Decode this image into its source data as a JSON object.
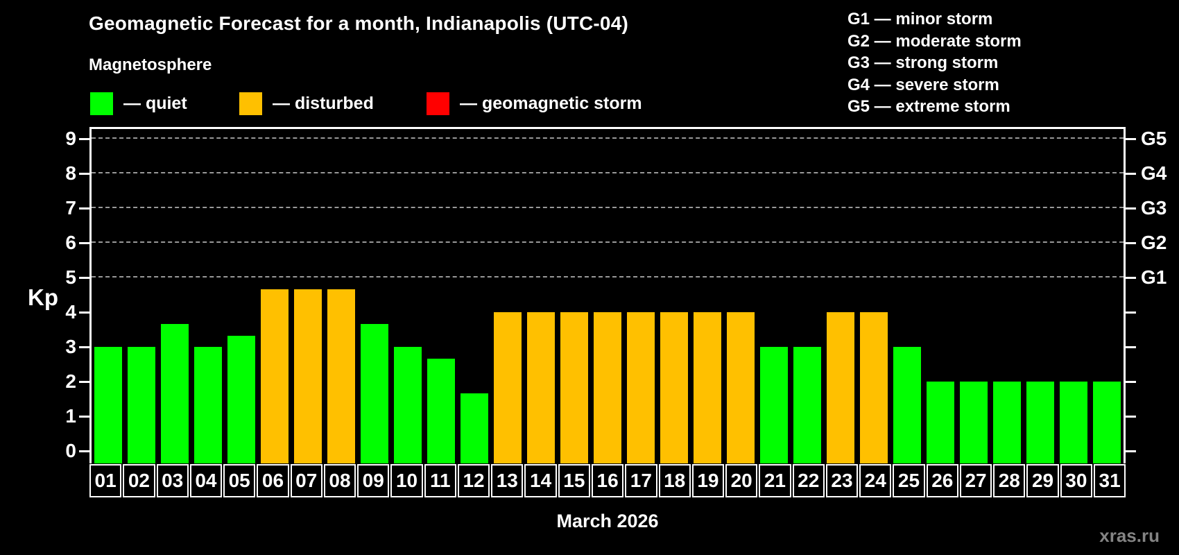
{
  "watermark": "xras.ru",
  "chart_data": {
    "type": "bar",
    "title": "Geomagnetic Forecast for a month, Indianapolis (UTC-04)",
    "subtitle": "Magnetosphere",
    "xlabel": "March 2026",
    "ylabel": "Kp",
    "ylim": [
      0,
      9
    ],
    "grid": "dashed horizontal lines at Kp 5-9 only",
    "legend_position": "top-left",
    "categories": [
      "01",
      "02",
      "03",
      "04",
      "05",
      "06",
      "07",
      "08",
      "09",
      "10",
      "11",
      "12",
      "13",
      "14",
      "15",
      "16",
      "17",
      "18",
      "19",
      "20",
      "21",
      "22",
      "23",
      "24",
      "25",
      "26",
      "27",
      "28",
      "29",
      "30",
      "31"
    ],
    "values": [
      3,
      3,
      3.67,
      3,
      3.33,
      4.67,
      4.67,
      4.67,
      3.67,
      3,
      2.67,
      1.67,
      4,
      4,
      4,
      4,
      4,
      4,
      4,
      4,
      3,
      3,
      4,
      4,
      3,
      2,
      2,
      2,
      2,
      2,
      2
    ],
    "states": [
      "quiet",
      "quiet",
      "quiet",
      "quiet",
      "quiet",
      "disturbed",
      "disturbed",
      "disturbed",
      "quiet",
      "quiet",
      "quiet",
      "quiet",
      "disturbed",
      "disturbed",
      "disturbed",
      "disturbed",
      "disturbed",
      "disturbed",
      "disturbed",
      "disturbed",
      "quiet",
      "quiet",
      "disturbed",
      "disturbed",
      "quiet",
      "quiet",
      "quiet",
      "quiet",
      "quiet",
      "quiet",
      "quiet"
    ],
    "colors": {
      "quiet": "#00ff00",
      "disturbed": "#ffc000",
      "storm": "#ff0000"
    },
    "y_ticks": [
      0,
      1,
      2,
      3,
      4,
      5,
      6,
      7,
      8,
      9
    ],
    "right_axis_labels": [
      {
        "kp": 5,
        "label": "G1"
      },
      {
        "kp": 6,
        "label": "G2"
      },
      {
        "kp": 7,
        "label": "G3"
      },
      {
        "kp": 8,
        "label": "G4"
      },
      {
        "kp": 9,
        "label": "G5"
      }
    ],
    "legend": [
      {
        "state": "quiet",
        "label": "— quiet"
      },
      {
        "state": "disturbed",
        "label": "— disturbed"
      },
      {
        "state": "storm",
        "label": "— geomagnetic storm"
      }
    ],
    "g_scale_legend": [
      "G1 — minor storm",
      "G2 — moderate storm",
      "G3 — strong storm",
      "G4 — severe storm",
      "G5 — extreme storm"
    ]
  }
}
